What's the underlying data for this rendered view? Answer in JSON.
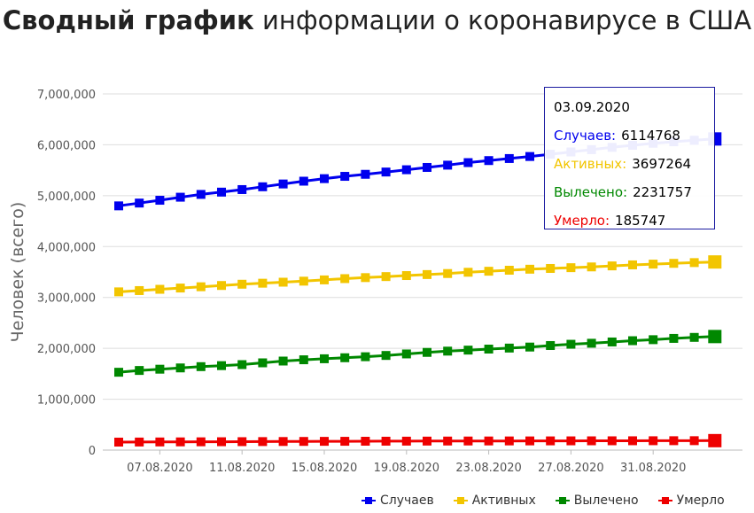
{
  "title": {
    "bold": "Сводный график",
    "rest": " информации о коронавирусе в США"
  },
  "chart_data": {
    "type": "line",
    "title": "Сводный график информации о коронавирусе в США",
    "ylabel": "Человек (всего)",
    "xlabel": "",
    "ylim": [
      0,
      7000000
    ],
    "yticks": [
      "0",
      "1,000,000",
      "2,000,000",
      "3,000,000",
      "4,000,000",
      "5,000,000",
      "6,000,000",
      "7,000,000"
    ],
    "xticks": [
      "07.08.2020",
      "11.08.2020",
      "15.08.2020",
      "19.08.2020",
      "23.08.2020",
      "27.08.2020",
      "31.08.2020"
    ],
    "grid": true,
    "legend_position": "bottom-right",
    "x": [
      "05.08.2020",
      "06.08.2020",
      "07.08.2020",
      "08.08.2020",
      "09.08.2020",
      "10.08.2020",
      "11.08.2020",
      "12.08.2020",
      "13.08.2020",
      "14.08.2020",
      "15.08.2020",
      "16.08.2020",
      "17.08.2020",
      "18.08.2020",
      "19.08.2020",
      "20.08.2020",
      "21.08.2020",
      "22.08.2020",
      "23.08.2020",
      "24.08.2020",
      "25.08.2020",
      "26.08.2020",
      "27.08.2020",
      "28.08.2020",
      "29.08.2020",
      "30.08.2020",
      "31.08.2020",
      "01.09.2020",
      "02.09.2020",
      "03.09.2020"
    ],
    "series": [
      {
        "name": "Случаев",
        "color": "#0000ee",
        "values": [
          4800000,
          4855000,
          4910000,
          4970000,
          5025000,
          5070000,
          5120000,
          5175000,
          5230000,
          5285000,
          5335000,
          5380000,
          5420000,
          5465000,
          5510000,
          5555000,
          5600000,
          5650000,
          5690000,
          5730000,
          5770000,
          5815000,
          5860000,
          5905000,
          5950000,
          5990000,
          6030000,
          6060000,
          6090000,
          6114768
        ]
      },
      {
        "name": "Активных",
        "color": "#f2c500",
        "values": [
          3110000,
          3135000,
          3160000,
          3185000,
          3210000,
          3235000,
          3260000,
          3280000,
          3300000,
          3320000,
          3345000,
          3370000,
          3390000,
          3410000,
          3430000,
          3450000,
          3470000,
          3495000,
          3515000,
          3535000,
          3555000,
          3570000,
          3585000,
          3600000,
          3620000,
          3640000,
          3655000,
          3670000,
          3685000,
          3697264
        ]
      },
      {
        "name": "Вылечено",
        "color": "#008800",
        "values": [
          1530000,
          1565000,
          1590000,
          1615000,
          1640000,
          1660000,
          1680000,
          1715000,
          1750000,
          1775000,
          1795000,
          1815000,
          1835000,
          1860000,
          1890000,
          1920000,
          1945000,
          1965000,
          1985000,
          2005000,
          2025000,
          2055000,
          2080000,
          2100000,
          2125000,
          2150000,
          2170000,
          2195000,
          2215000,
          2231757
        ]
      },
      {
        "name": "Умерло",
        "color": "#ee0000",
        "values": [
          157000,
          158500,
          160000,
          161500,
          163000,
          164500,
          166000,
          167500,
          169000,
          170500,
          172000,
          173000,
          174000,
          175000,
          176000,
          177000,
          178000,
          178700,
          179400,
          180000,
          180600,
          181200,
          181800,
          182400,
          183000,
          183600,
          184200,
          184700,
          185200,
          185747
        ]
      }
    ]
  },
  "tooltip": {
    "date": "03.09.2020",
    "rows": [
      {
        "label": "Случаев:",
        "value": "6114768",
        "color": "#0000ee"
      },
      {
        "label": "Активных:",
        "value": "3697264",
        "color": "#f2c500"
      },
      {
        "label": "Вылечено:",
        "value": "2231757",
        "color": "#008800"
      },
      {
        "label": "Умерло:",
        "value": "185747",
        "color": "#ee0000"
      }
    ]
  }
}
